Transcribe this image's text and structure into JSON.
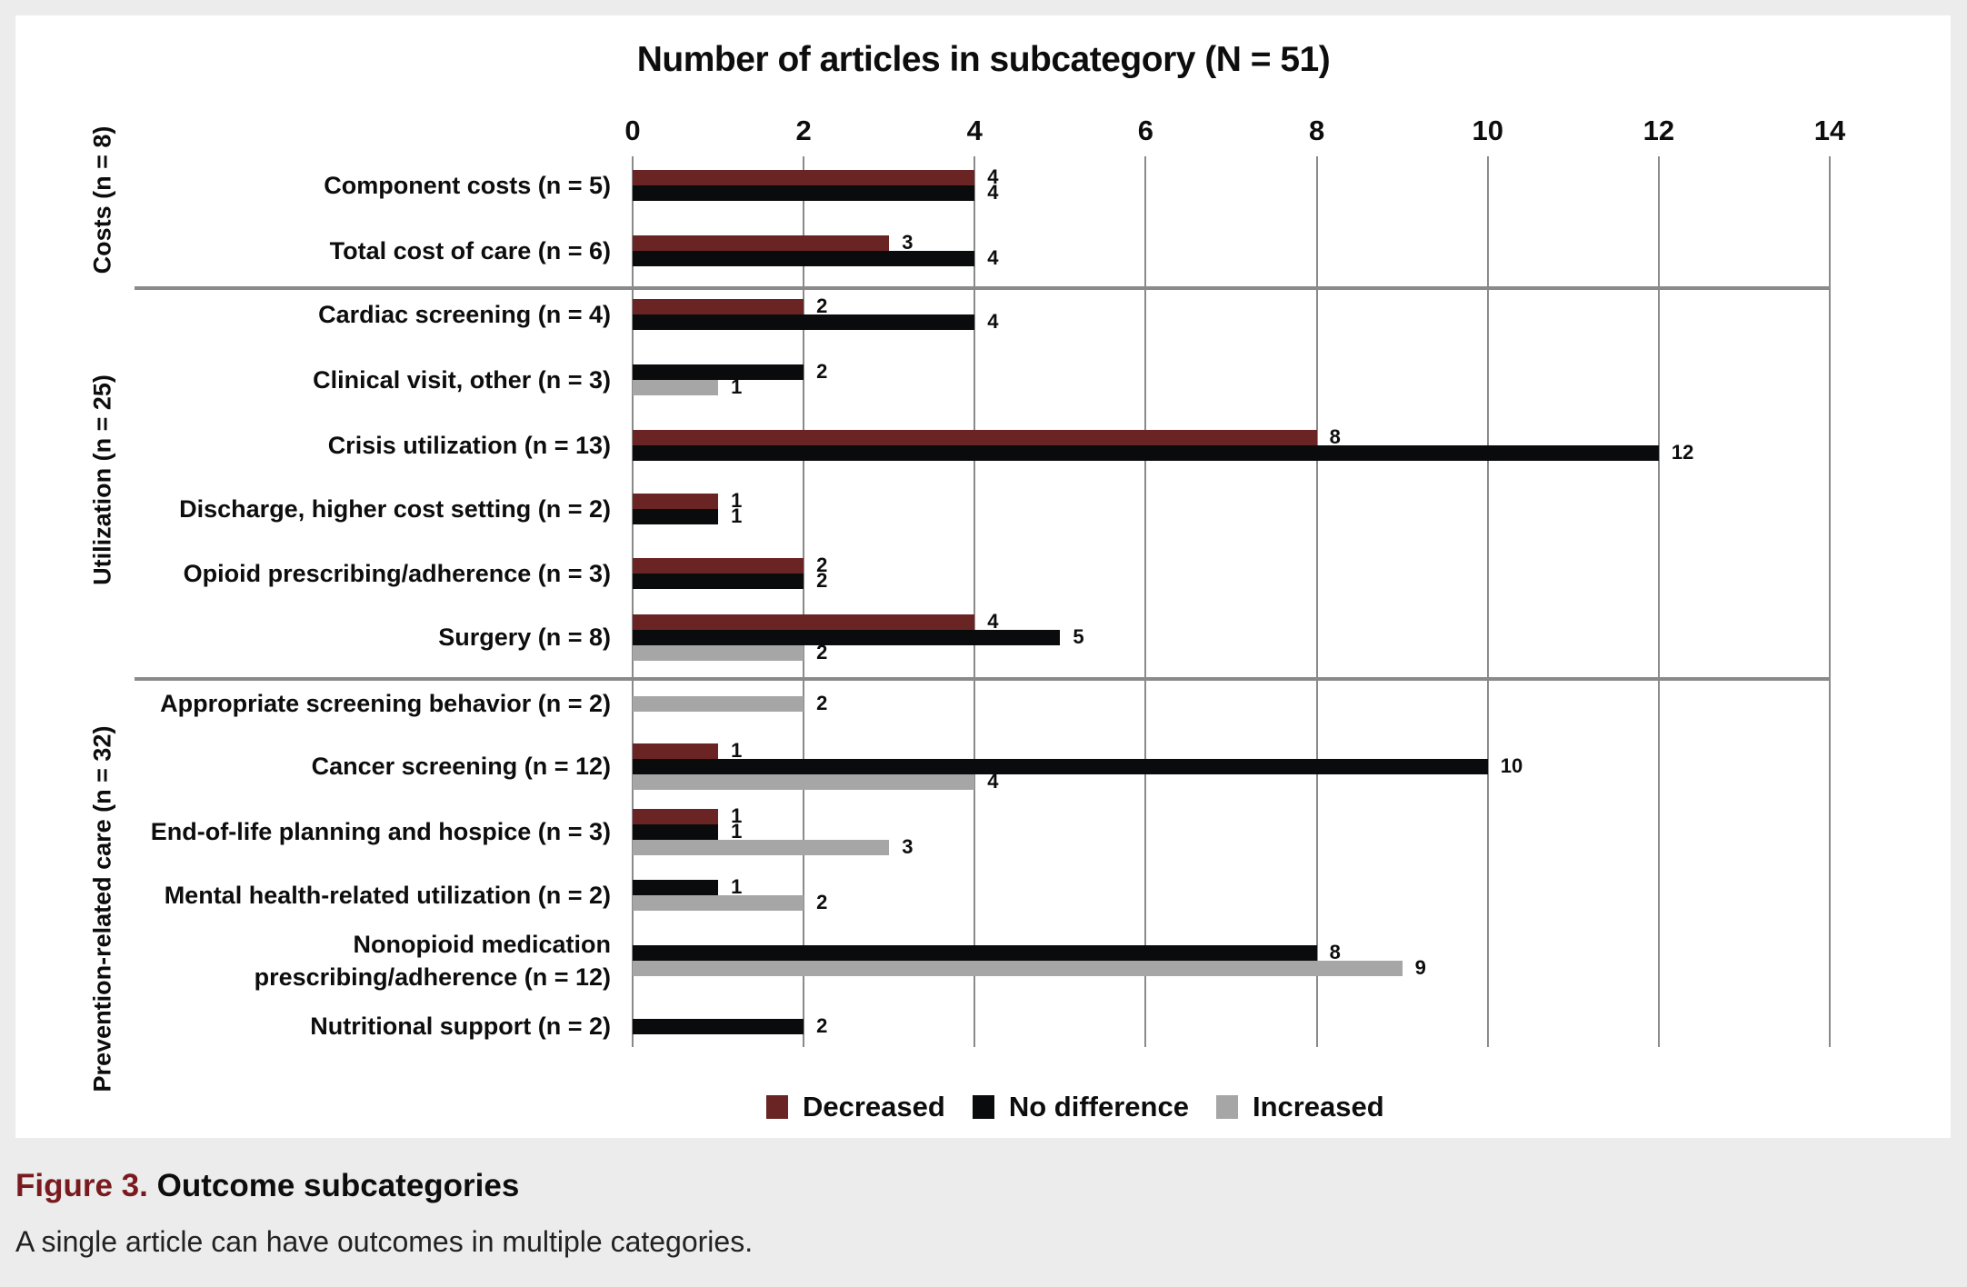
{
  "figure": {
    "number_label": "Figure 3.",
    "title": "Outcome subcategories",
    "subtitle": "A single article can have outcomes in multiple categories."
  },
  "colors": {
    "decreased": "#6b2424",
    "no_difference": "#0a0b0d",
    "increased": "#a6a6a6",
    "grid": "#8a8a8a",
    "panel": "#ffffff",
    "page": "#ebeceb",
    "caption_accent": "#7a1a1f"
  },
  "legend": [
    {
      "key": "decreased",
      "label": "Decreased"
    },
    {
      "key": "no_difference",
      "label": "No difference"
    },
    {
      "key": "increased",
      "label": "Increased"
    }
  ],
  "chart_data": {
    "type": "bar",
    "orientation": "horizontal",
    "title": "Number of articles in subcategory (N = 51)",
    "xlabel": "",
    "ylabel": "",
    "xlim": [
      0,
      14
    ],
    "xticks": [
      0,
      2,
      4,
      6,
      8,
      10,
      12,
      14
    ],
    "grid": true,
    "legend_position": "bottom",
    "groups": [
      {
        "label": "Costs (n = 8)",
        "rows": [
          0,
          1
        ]
      },
      {
        "label": "Utilization (n = 25)",
        "rows": [
          2,
          3,
          4,
          5,
          6,
          7
        ]
      },
      {
        "label": "Prevention-related care (n = 32)",
        "rows": [
          8,
          9,
          10,
          11,
          12,
          13
        ]
      }
    ],
    "categories": [
      "Component costs (n = 5)",
      "Total cost of care (n = 6)",
      "Cardiac screening (n = 4)",
      "Clinical visit, other (n = 3)",
      "Crisis utilization (n = 13)",
      "Discharge, higher cost setting (n = 2)",
      "Opioid prescribing/adherence (n = 3)",
      "Surgery (n = 8)",
      "Appropriate screening behavior (n = 2)",
      "Cancer screening (n = 12)",
      "End-of-life planning and hospice (n = 3)",
      "Mental health-related utilization (n = 2)",
      "Nonopioid medication prescribing/adherence (n = 12)",
      "Nutritional support (n = 2)"
    ],
    "category_lines": [
      [
        "Component costs (n = 5)"
      ],
      [
        "Total cost of care (n = 6)"
      ],
      [
        "Cardiac screening (n = 4)"
      ],
      [
        "Clinical visit, other (n = 3)"
      ],
      [
        "Crisis utilization (n = 13)"
      ],
      [
        "Discharge, higher cost setting (n = 2)"
      ],
      [
        "Opioid prescribing/adherence (n = 3)"
      ],
      [
        "Surgery (n = 8)"
      ],
      [
        "Appropriate screening behavior (n = 2)"
      ],
      [
        "Cancer screening (n = 12)"
      ],
      [
        "End-of-life planning and hospice (n = 3)"
      ],
      [
        "Mental health-related utilization (n = 2)"
      ],
      [
        "Nonopioid medication ",
        "prescribing/adherence (n = 12)"
      ],
      [
        "Nutritional support (n = 2)"
      ]
    ],
    "series": [
      {
        "name": "Decreased",
        "key": "decreased",
        "values": [
          4,
          3,
          2,
          null,
          8,
          1,
          2,
          4,
          null,
          1,
          1,
          null,
          null,
          null
        ]
      },
      {
        "name": "No difference",
        "key": "no_difference",
        "values": [
          4,
          4,
          4,
          2,
          12,
          1,
          2,
          5,
          null,
          10,
          1,
          1,
          8,
          2
        ]
      },
      {
        "name": "Increased",
        "key": "increased",
        "values": [
          null,
          null,
          null,
          1,
          null,
          null,
          null,
          2,
          2,
          4,
          3,
          2,
          9,
          null
        ]
      }
    ]
  }
}
